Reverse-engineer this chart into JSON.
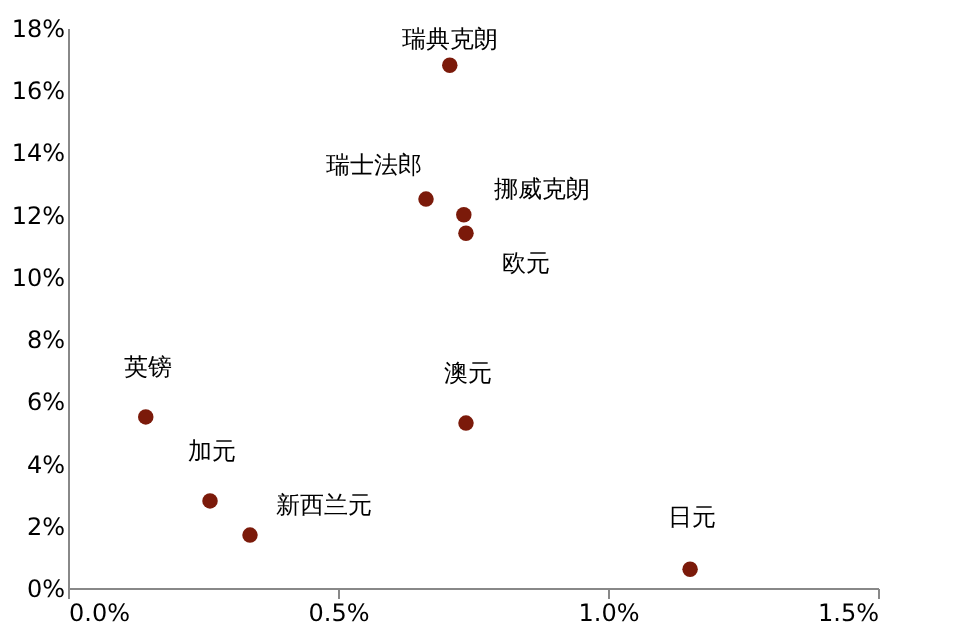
{
  "chart_data": {
    "type": "scatter",
    "x": [
      0.707,
      0.663,
      0.733,
      0.737,
      0.737,
      0.144,
      0.263,
      0.337,
      1.152
    ],
    "values": [
      16.8,
      12.5,
      12.0,
      11.4,
      5.3,
      5.5,
      2.8,
      1.7,
      0.6
    ],
    "color": "#7b1a0a",
    "marker": "circle",
    "grid": false,
    "xlim": [
      0,
      1.5
    ],
    "xticks": [
      {
        "value": 0,
        "label": "0.0%"
      },
      {
        "value": 0.5,
        "label": "0.5%"
      },
      {
        "value": 1.0,
        "label": "1.0%"
      },
      {
        "value": 1.5,
        "label": "1.5%"
      }
    ],
    "ylim": [
      0,
      18
    ],
    "yticks": [
      {
        "value": 0,
        "label": "0%"
      },
      {
        "value": 2,
        "label": "2%"
      },
      {
        "value": 4,
        "label": "4%"
      },
      {
        "value": 6,
        "label": "6%"
      },
      {
        "value": 8,
        "label": "8%"
      },
      {
        "value": 10,
        "label": "10%"
      },
      {
        "value": 12,
        "label": "12%"
      },
      {
        "value": 14,
        "label": "14%"
      },
      {
        "value": 16,
        "label": "16%"
      },
      {
        "value": 18,
        "label": "18%"
      }
    ],
    "annotations": [
      {
        "text": "瑞典克朗",
        "x": 0.707,
        "y": 16.8
      },
      {
        "text": "瑞士法郎",
        "x": 0.663,
        "y": 12.5
      },
      {
        "text": "挪威克朗",
        "x": 0.733,
        "y": 12.0
      },
      {
        "text": "欧元",
        "x": 0.737,
        "y": 11.4
      },
      {
        "text": "澳元",
        "x": 0.737,
        "y": 5.3
      },
      {
        "text": "英镑",
        "x": 0.144,
        "y": 5.5
      },
      {
        "text": "加元",
        "x": 0.263,
        "y": 2.8
      },
      {
        "text": "新西兰元",
        "x": 0.337,
        "y": 1.7
      },
      {
        "text": "日元",
        "x": 1.152,
        "y": 0.6
      }
    ]
  }
}
